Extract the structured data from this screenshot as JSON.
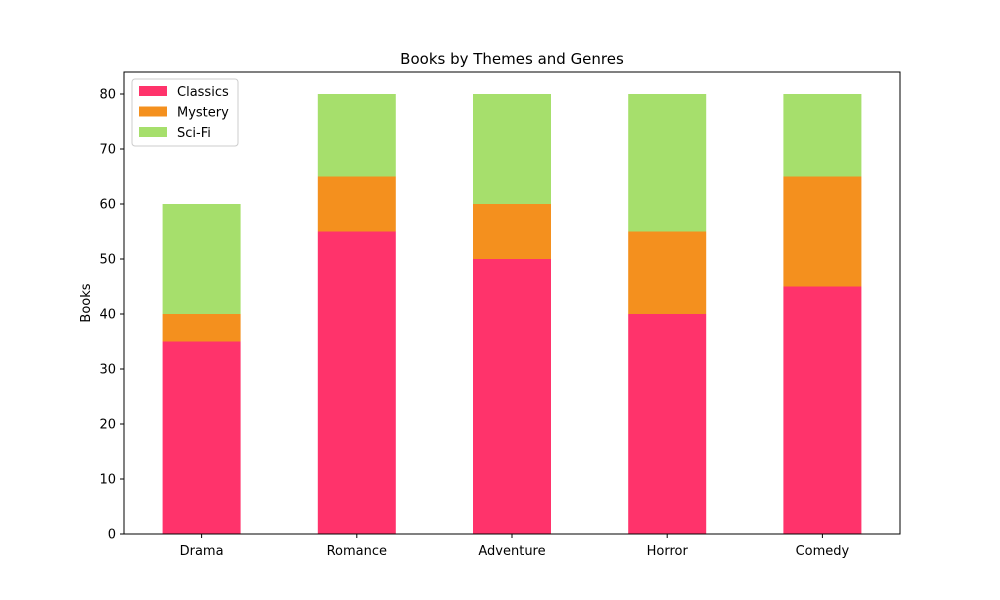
{
  "chart_data": {
    "type": "bar",
    "stacked": true,
    "title": "Books by Themes and Genres",
    "xlabel": "",
    "ylabel": "Books",
    "categories": [
      "Drama",
      "Romance",
      "Adventure",
      "Horror",
      "Comedy"
    ],
    "series": [
      {
        "name": "Classics",
        "values": [
          35,
          55,
          50,
          40,
          45
        ],
        "color": "#ff336b"
      },
      {
        "name": "Mystery",
        "values": [
          5,
          10,
          10,
          15,
          20
        ],
        "color": "#f4901e"
      },
      {
        "name": "Sci-Fi",
        "values": [
          20,
          15,
          20,
          25,
          15
        ],
        "color": "#a6df6c"
      }
    ],
    "ylim": [
      0,
      84
    ],
    "yticks": [
      0,
      10,
      20,
      30,
      40,
      50,
      60,
      70,
      80
    ],
    "grid": false,
    "legend_position": "top-left"
  }
}
